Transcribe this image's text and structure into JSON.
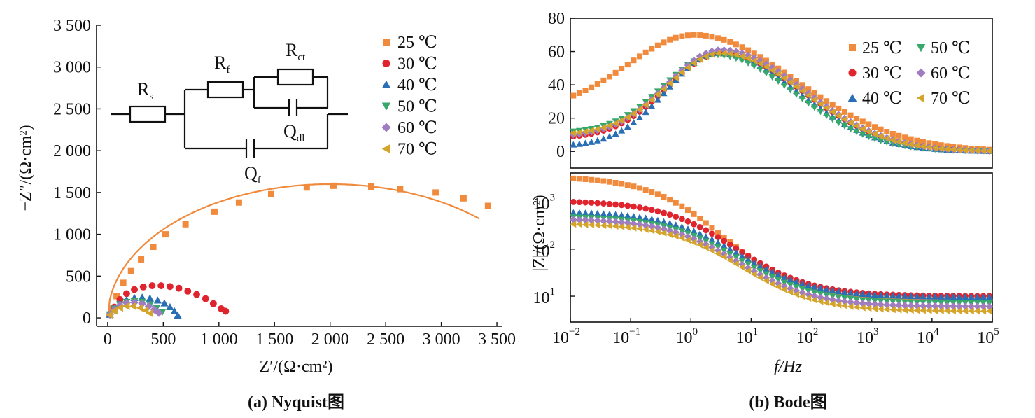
{
  "colors": {
    "25": "#f08a3c",
    "30": "#e0242e",
    "40": "#2a6fb5",
    "50": "#36a86a",
    "60": "#a07cc0",
    "70": "#d4a52a",
    "axis": "#111111"
  },
  "chart_data": [
    {
      "type": "scatter",
      "panel": "(a) Nyquist图",
      "caption": "(a) Nyquist图",
      "xlabel": "Z′/(Ω·cm²)",
      "ylabel": "−Z″/(Ω·cm²)",
      "xlim": [
        -100,
        3550
      ],
      "ylim": [
        -100,
        3500
      ],
      "xticks": [
        0,
        500,
        1000,
        1500,
        2000,
        2500,
        3000,
        3500
      ],
      "xtick_labels": [
        "0",
        "500",
        "1 000",
        "1 500",
        "2 000",
        "2 500",
        "3 000",
        "3 500"
      ],
      "yticks": [
        0,
        500,
        1000,
        1500,
        2000,
        2500,
        3000,
        3500
      ],
      "ytick_labels": [
        "0",
        "500",
        "1 000",
        "1 500",
        "2 000",
        "2 500",
        "3 000",
        "3 500"
      ],
      "legend_position": "top-right",
      "inset_circuit": {
        "labels": [
          {
            "main": "R",
            "sub": "s"
          },
          {
            "main": "R",
            "sub": "f"
          },
          {
            "main": "R",
            "sub": "ct"
          },
          {
            "main": "Q",
            "sub": "dl"
          },
          {
            "main": "Q",
            "sub": "f"
          }
        ]
      },
      "series": [
        {
          "name": "25 ℃",
          "key": "25",
          "marker": "square",
          "fit": {
            "xmax": 3350,
            "diameter": 4000,
            "xoffset": 0
          },
          "points": [
            [
              30,
              110
            ],
            [
              80,
              260
            ],
            [
              140,
              420
            ],
            [
              210,
              560
            ],
            [
              300,
              700
            ],
            [
              410,
              850
            ],
            [
              520,
              1000
            ],
            [
              700,
              1120
            ],
            [
              960,
              1270
            ],
            [
              1180,
              1380
            ],
            [
              1470,
              1480
            ],
            [
              1790,
              1560
            ],
            [
              2030,
              1580
            ],
            [
              2370,
              1570
            ],
            [
              2630,
              1540
            ],
            [
              2950,
              1500
            ],
            [
              3200,
              1430
            ],
            [
              3420,
              1340
            ]
          ]
        },
        {
          "name": "30 ℃",
          "key": "30",
          "marker": "circle",
          "fit": {
            "xmax": 1080,
            "diameter": 1090,
            "xoffset": 0
          },
          "points": [
            [
              20,
              40
            ],
            [
              60,
              130
            ],
            [
              110,
              220
            ],
            [
              170,
              290
            ],
            [
              240,
              340
            ],
            [
              320,
              370
            ],
            [
              400,
              385
            ],
            [
              480,
              385
            ],
            [
              560,
              375
            ],
            [
              640,
              355
            ],
            [
              720,
              320
            ],
            [
              800,
              280
            ],
            [
              880,
              230
            ],
            [
              950,
              170
            ],
            [
              1020,
              110
            ],
            [
              1060,
              80
            ]
          ]
        },
        {
          "name": "40 ℃",
          "key": "40",
          "marker": "triangle",
          "fit": {
            "xmax": 650,
            "diameter": 680,
            "xoffset": 0
          },
          "points": [
            [
              20,
              40
            ],
            [
              60,
              110
            ],
            [
              110,
              170
            ],
            [
              170,
              215
            ],
            [
              240,
              240
            ],
            [
              310,
              245
            ],
            [
              380,
              235
            ],
            [
              450,
              210
            ],
            [
              510,
              175
            ],
            [
              560,
              130
            ],
            [
              600,
              80
            ],
            [
              630,
              30
            ]
          ]
        },
        {
          "name": "50 ℃",
          "key": "50",
          "marker": "triangle-down",
          "fit": {
            "xmax": 500,
            "diameter": 520,
            "xoffset": 0
          },
          "points": [
            [
              20,
              40
            ],
            [
              60,
              110
            ],
            [
              110,
              160
            ],
            [
              170,
              190
            ],
            [
              240,
              200
            ],
            [
              310,
              190
            ],
            [
              380,
              160
            ],
            [
              440,
              120
            ],
            [
              490,
              70
            ]
          ]
        },
        {
          "name": "60 ℃",
          "key": "60",
          "marker": "diamond",
          "fit": {
            "xmax": 480,
            "diameter": 500,
            "xoffset": 0
          },
          "points": [
            [
              20,
              40
            ],
            [
              60,
              100
            ],
            [
              110,
              150
            ],
            [
              170,
              180
            ],
            [
              240,
              185
            ],
            [
              310,
              170
            ],
            [
              370,
              140
            ],
            [
              420,
              100
            ],
            [
              460,
              60
            ]
          ]
        },
        {
          "name": "70 ℃",
          "key": "70",
          "marker": "triangle-left",
          "fit": {
            "xmax": 390,
            "diameter": 400,
            "xoffset": 0
          },
          "points": [
            [
              20,
              35
            ],
            [
              60,
              85
            ],
            [
              110,
              120
            ],
            [
              170,
              140
            ],
            [
              230,
              140
            ],
            [
              290,
              120
            ],
            [
              340,
              90
            ],
            [
              380,
              55
            ]
          ]
        }
      ]
    },
    {
      "type": "scatter",
      "panel": "(b) Bode图",
      "caption": "(b) Bode图",
      "xlabel": "f/Hz",
      "xscale": "log",
      "xlim": [
        -2,
        5
      ],
      "xtick_exponents": [
        -2,
        -1,
        0,
        1,
        2,
        3,
        4,
        5
      ],
      "xtick_base": "10",
      "legend_position": "top-right",
      "top": {
        "ylabel": "",
        "ylim": [
          -10,
          80
        ],
        "yticks": [
          0,
          20,
          40,
          60,
          80
        ],
        "ytick_labels": [
          "0",
          "20",
          "40",
          "60",
          "80"
        ],
        "series": [
          {
            "name": "25 ℃",
            "key": "25",
            "marker": "square",
            "peak": 70,
            "center": 0.05,
            "width": 1.55,
            "low": 25
          },
          {
            "name": "30 ℃",
            "key": "30",
            "marker": "circle",
            "peak": 59,
            "center": 0.5,
            "width": 1.25,
            "low": 8
          },
          {
            "name": "40 ℃",
            "key": "40",
            "marker": "triangle",
            "peak": 59,
            "center": 0.45,
            "width": 1.2,
            "low": 3
          },
          {
            "name": "50 ℃",
            "key": "50",
            "marker": "triangle-down",
            "peak": 58,
            "center": 0.4,
            "width": 1.2,
            "low": 11
          },
          {
            "name": "60 ℃",
            "key": "60",
            "marker": "diamond",
            "peak": 61,
            "center": 0.5,
            "width": 1.25,
            "low": 9
          },
          {
            "name": "70 ℃",
            "key": "70",
            "marker": "triangle-left",
            "peak": 59,
            "center": 0.5,
            "width": 1.25,
            "low": 10
          }
        ]
      },
      "bottom": {
        "ylabel": "|Z|/(Ω·cm²)",
        "yscale": "log",
        "ylim": [
          0.45,
          3.62
        ],
        "ytick_exponents": [
          1,
          2,
          3
        ],
        "ytick_base": "10",
        "series": [
          {
            "name": "25 ℃",
            "key": "25",
            "marker": "square",
            "zlow": 3.55,
            "zhigh": 0.95,
            "knee": 0.55
          },
          {
            "name": "30 ℃",
            "key": "30",
            "marker": "circle",
            "zlow": 3.03,
            "zhigh": 1.0,
            "knee": 0.75
          },
          {
            "name": "40 ℃",
            "key": "40",
            "marker": "triangle",
            "zlow": 2.8,
            "zhigh": 0.98,
            "knee": 0.8
          },
          {
            "name": "50 ℃",
            "key": "50",
            "marker": "triangle-down",
            "zlow": 2.7,
            "zhigh": 0.85,
            "knee": 0.82
          },
          {
            "name": "60 ℃",
            "key": "60",
            "marker": "diamond",
            "zlow": 2.65,
            "zhigh": 0.78,
            "knee": 0.8
          },
          {
            "name": "70 ℃",
            "key": "70",
            "marker": "triangle-left",
            "zlow": 2.55,
            "zhigh": 0.68,
            "knee": 0.85
          }
        ]
      }
    }
  ]
}
